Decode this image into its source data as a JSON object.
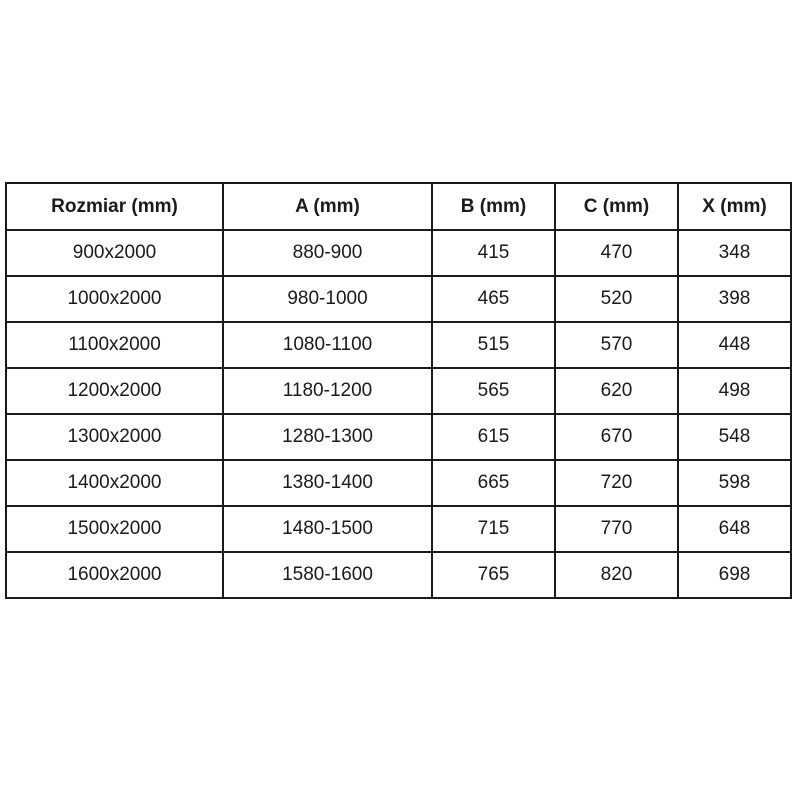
{
  "table": {
    "headers": [
      "Rozmiar (mm)",
      "A (mm)",
      "B (mm)",
      "C (mm)",
      "X (mm)"
    ],
    "rows": [
      [
        "900x2000",
        "880-900",
        "415",
        "470",
        "348"
      ],
      [
        "1000x2000",
        "980-1000",
        "465",
        "520",
        "398"
      ],
      [
        "1100x2000",
        "1080-1100",
        "515",
        "570",
        "448"
      ],
      [
        "1200x2000",
        "1180-1200",
        "565",
        "620",
        "498"
      ],
      [
        "1300x2000",
        "1280-1300",
        "615",
        "670",
        "548"
      ],
      [
        "1400x2000",
        "1380-1400",
        "665",
        "720",
        "598"
      ],
      [
        "1500x2000",
        "1480-1500",
        "715",
        "770",
        "648"
      ],
      [
        "1600x2000",
        "1580-1600",
        "765",
        "820",
        "698"
      ]
    ],
    "border_color": "#1a1a1a",
    "text_color": "#1a1a1a",
    "background_color": "#ffffff"
  },
  "chart_data": {
    "type": "table",
    "title": "",
    "columns": [
      "Rozmiar (mm)",
      "A (mm)",
      "B (mm)",
      "C (mm)",
      "X (mm)"
    ],
    "categories": [
      "900x2000",
      "1000x2000",
      "1100x2000",
      "1200x2000",
      "1300x2000",
      "1400x2000",
      "1500x2000",
      "1600x2000"
    ],
    "series": [
      {
        "name": "A (mm)",
        "values": [
          "880-900",
          "980-1000",
          "1080-1100",
          "1180-1200",
          "1280-1300",
          "1380-1400",
          "1480-1500",
          "1580-1600"
        ]
      },
      {
        "name": "B (mm)",
        "values": [
          415,
          465,
          515,
          565,
          615,
          665,
          715,
          765
        ]
      },
      {
        "name": "C (mm)",
        "values": [
          470,
          520,
          570,
          620,
          670,
          720,
          770,
          820
        ]
      },
      {
        "name": "X (mm)",
        "values": [
          348,
          398,
          448,
          498,
          548,
          598,
          648,
          698
        ]
      }
    ]
  }
}
